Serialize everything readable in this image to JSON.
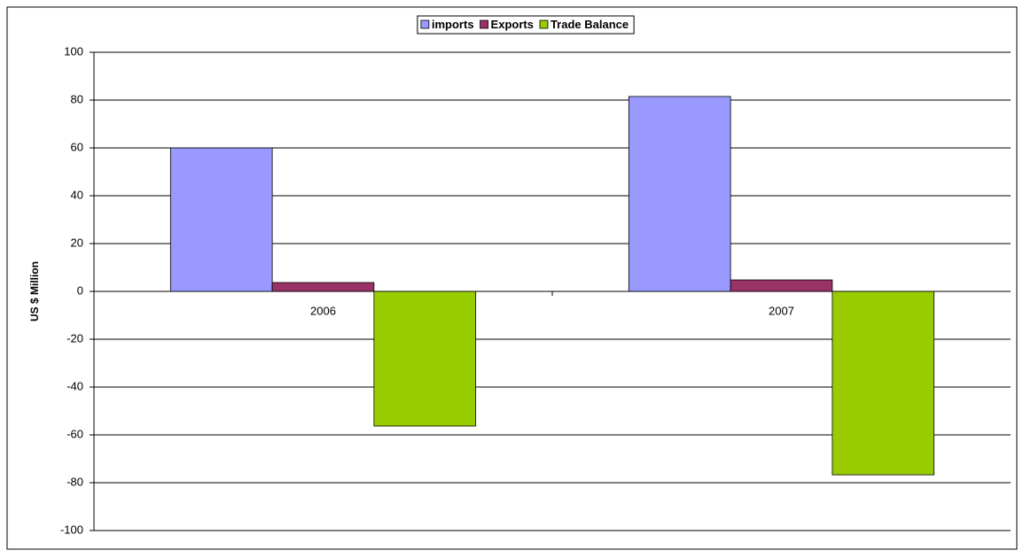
{
  "chart_data": {
    "type": "bar",
    "y_label": "US $ Million",
    "categories": [
      "2006",
      "2007"
    ],
    "series": [
      {
        "name": "imports",
        "color": "#9999ff",
        "values": [
          60,
          81.5
        ]
      },
      {
        "name": "Exports",
        "color": "#993366",
        "values": [
          3.7,
          4.8
        ]
      },
      {
        "name": "Trade Balance",
        "color": "#99cc00",
        "values": [
          -56.3,
          -76.7
        ]
      }
    ],
    "ylim": [
      -100,
      100
    ],
    "yticks": [
      -100,
      -80,
      -60,
      -40,
      -20,
      0,
      20,
      40,
      60,
      80,
      100
    ],
    "grid": true,
    "legend": "top"
  }
}
